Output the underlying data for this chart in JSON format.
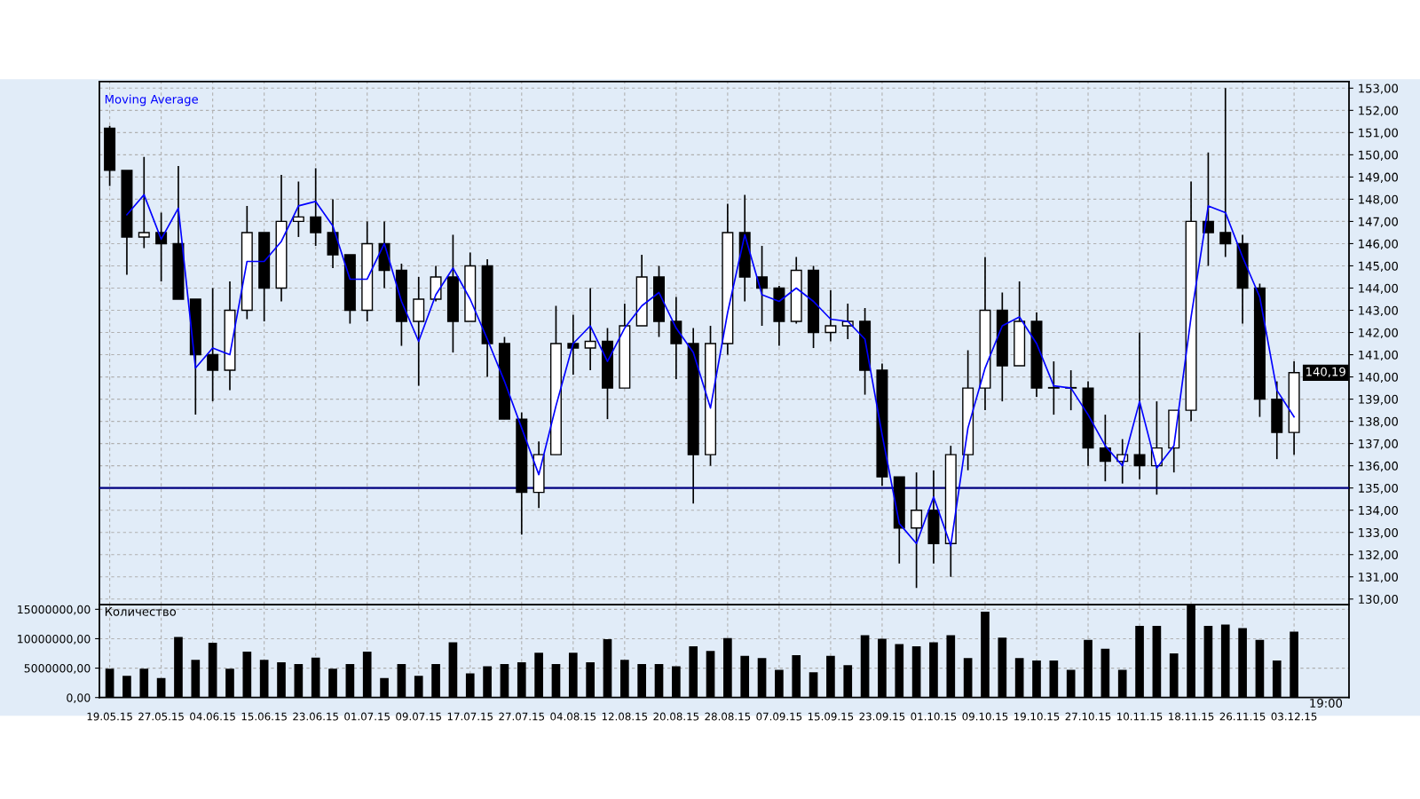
{
  "chart_data": [
    {
      "type": "candlestick",
      "color": "#000000",
      "categories": [
        "19.05.15",
        null,
        null,
        "27.05.15",
        null,
        null,
        "04.06.15",
        null,
        null,
        "15.06.15",
        null,
        null,
        "23.06.15",
        null,
        null,
        "01.07.15",
        null,
        null,
        "09.07.15",
        null,
        null,
        "17.07.15",
        null,
        null,
        "27.07.15",
        null,
        null,
        "04.08.15",
        null,
        null,
        "12.08.15",
        null,
        null,
        "20.08.15",
        null,
        null,
        "28.08.15",
        null,
        null,
        "07.09.15",
        null,
        null,
        "15.09.15",
        null,
        null,
        "23.09.15",
        null,
        null,
        "01.10.15",
        null,
        null,
        "09.10.15",
        null,
        null,
        "19.10.15",
        null,
        null,
        "27.10.15",
        null,
        null,
        "10.11.15",
        null,
        null,
        "18.11.15",
        null,
        null,
        "26.11.15",
        null,
        null,
        "03.12.15"
      ],
      "ohlc": [
        [
          151.2,
          151.3,
          148.6,
          149.3
        ],
        [
          149.3,
          149.3,
          144.6,
          146.3
        ],
        [
          146.3,
          149.9,
          145.8,
          146.5
        ],
        [
          146.5,
          147.4,
          144.3,
          146.0
        ],
        [
          146.0,
          149.5,
          143.5,
          143.5
        ],
        [
          143.5,
          143.5,
          138.3,
          141.0
        ],
        [
          141.0,
          144.0,
          138.9,
          140.3
        ],
        [
          140.3,
          144.3,
          139.4,
          143.0
        ],
        [
          143.0,
          147.7,
          142.6,
          146.5
        ],
        [
          146.5,
          146.5,
          142.5,
          144.0
        ],
        [
          144.0,
          149.1,
          143.4,
          147.0
        ],
        [
          147.0,
          148.8,
          146.3,
          147.2
        ],
        [
          147.2,
          149.4,
          145.9,
          146.5
        ],
        [
          146.5,
          148.0,
          144.9,
          145.5
        ],
        [
          145.5,
          145.5,
          142.4,
          143.0
        ],
        [
          143.0,
          147.0,
          142.5,
          146.0
        ],
        [
          146.0,
          147.0,
          144.0,
          144.8
        ],
        [
          144.8,
          145.1,
          141.4,
          142.5
        ],
        [
          142.5,
          144.5,
          139.6,
          143.5
        ],
        [
          143.5,
          145.0,
          143.4,
          144.5
        ],
        [
          144.5,
          146.4,
          141.1,
          142.5
        ],
        [
          142.5,
          145.6,
          142.5,
          145.0
        ],
        [
          145.0,
          145.3,
          140.0,
          141.5
        ],
        [
          141.5,
          141.8,
          138.1,
          138.1
        ],
        [
          138.1,
          138.4,
          132.9,
          134.8
        ],
        [
          134.8,
          137.1,
          134.1,
          136.5
        ],
        [
          136.5,
          143.2,
          136.5,
          141.5
        ],
        [
          141.5,
          142.8,
          140.1,
          141.3
        ],
        [
          141.3,
          144.0,
          140.3,
          141.6
        ],
        [
          141.6,
          142.2,
          138.1,
          139.5
        ],
        [
          139.5,
          143.3,
          139.5,
          142.3
        ],
        [
          142.3,
          145.5,
          142.3,
          144.5
        ],
        [
          144.5,
          145.0,
          141.8,
          142.5
        ],
        [
          142.5,
          143.6,
          139.9,
          141.5
        ],
        [
          141.5,
          142.2,
          134.3,
          136.5
        ],
        [
          136.5,
          142.3,
          136.0,
          141.5
        ],
        [
          141.5,
          147.8,
          141.0,
          146.5
        ],
        [
          146.5,
          148.2,
          143.4,
          144.5
        ],
        [
          144.5,
          145.9,
          142.3,
          144.0
        ],
        [
          144.0,
          144.1,
          141.4,
          142.5
        ],
        [
          142.5,
          145.4,
          142.4,
          144.8
        ],
        [
          144.8,
          145.0,
          141.3,
          142.0
        ],
        [
          142.0,
          143.9,
          141.6,
          142.3
        ],
        [
          142.3,
          143.3,
          141.7,
          142.5
        ],
        [
          142.5,
          143.1,
          139.2,
          140.3
        ],
        [
          140.3,
          140.6,
          135.1,
          135.5
        ],
        [
          135.5,
          135.5,
          131.6,
          133.2
        ],
        [
          133.2,
          135.7,
          130.5,
          134.0
        ],
        [
          134.0,
          135.8,
          131.6,
          132.5
        ],
        [
          132.5,
          136.9,
          131.0,
          136.5
        ],
        [
          136.5,
          141.2,
          135.8,
          139.5
        ],
        [
          139.5,
          145.4,
          138.5,
          143.0
        ],
        [
          143.0,
          143.8,
          138.9,
          140.5
        ],
        [
          140.5,
          144.3,
          140.5,
          142.5
        ],
        [
          142.5,
          142.9,
          139.1,
          139.5
        ],
        [
          139.5,
          140.7,
          138.3,
          139.5
        ],
        [
          139.5,
          140.3,
          138.5,
          139.5
        ],
        [
          139.5,
          139.8,
          136.0,
          136.8
        ],
        [
          136.8,
          138.3,
          135.3,
          136.2
        ],
        [
          136.2,
          137.2,
          135.2,
          136.5
        ],
        [
          136.5,
          142.0,
          135.4,
          136.0
        ],
        [
          136.0,
          138.9,
          134.7,
          136.8
        ],
        [
          136.8,
          138.5,
          135.7,
          138.5
        ],
        [
          138.5,
          148.8,
          138.0,
          147.0
        ],
        [
          147.0,
          150.1,
          145.0,
          146.5
        ],
        [
          146.5,
          153.0,
          145.4,
          146.0
        ],
        [
          146.0,
          146.4,
          142.4,
          144.0
        ],
        [
          144.0,
          144.2,
          138.2,
          139.0
        ],
        [
          139.0,
          139.8,
          136.3,
          137.5
        ],
        [
          137.5,
          140.7,
          136.5,
          140.19
        ]
      ],
      "series": [
        {
          "name": "Moving Average",
          "type": "line",
          "color": "#0000ff",
          "values": [
            null,
            147.3,
            148.2,
            146.2,
            147.6,
            140.4,
            141.3,
            141.0,
            145.2,
            145.2,
            146.1,
            147.7,
            147.9,
            146.8,
            144.4,
            144.4,
            146.0,
            143.4,
            141.6,
            143.7,
            144.9,
            143.5,
            141.7,
            139.8,
            137.7,
            135.6,
            138.7,
            141.5,
            142.3,
            140.7,
            142.2,
            143.2,
            143.8,
            142.2,
            141.1,
            138.6,
            142.9,
            146.4,
            143.7,
            143.4,
            144.0,
            143.4,
            142.6,
            142.5,
            141.7,
            137.4,
            133.4,
            132.5,
            134.6,
            132.4,
            137.7,
            140.4,
            142.3,
            142.7,
            141.5,
            139.6,
            139.5,
            138.3,
            136.9,
            136.0,
            138.9,
            135.9,
            136.9,
            142.7,
            147.7,
            147.4,
            145.4,
            143.6,
            139.4,
            138.2
          ]
        }
      ],
      "ylim": [
        129.75,
        153.3
      ],
      "yticks": [
        {
          "value": 130,
          "label": "130,00"
        },
        {
          "value": 131,
          "label": "131,00"
        },
        {
          "value": 132,
          "label": "132,00"
        },
        {
          "value": 133,
          "label": "133,00"
        },
        {
          "value": 134,
          "label": "134,00"
        },
        {
          "value": 135,
          "label": "135,00"
        },
        {
          "value": 136,
          "label": "136,00"
        },
        {
          "value": 137,
          "label": "137,00"
        },
        {
          "value": 138,
          "label": "138,00"
        },
        {
          "value": 139,
          "label": "139,00"
        },
        {
          "value": 140,
          "label": "140,00"
        },
        {
          "value": 141,
          "label": "141,00"
        },
        {
          "value": 142,
          "label": "142,00"
        },
        {
          "value": 143,
          "label": "143,00"
        },
        {
          "value": 144,
          "label": "144,00"
        },
        {
          "value": 145,
          "label": "145,00"
        },
        {
          "value": 146,
          "label": "146,00"
        },
        {
          "value": 147,
          "label": "147,00"
        },
        {
          "value": 148,
          "label": "148,00"
        },
        {
          "value": 149,
          "label": "149,00"
        },
        {
          "value": 150,
          "label": "150,00"
        },
        {
          "value": 151,
          "label": "151,00"
        },
        {
          "value": 152,
          "label": "152,00"
        },
        {
          "value": 153,
          "label": "153,00"
        }
      ],
      "ref_lines": [
        {
          "axis": "y",
          "value": 135,
          "color": "#000080"
        }
      ],
      "annotations": [
        {
          "text": "140,19",
          "x": "03.12.15",
          "y": 140.19
        }
      ],
      "grid": true,
      "legend": "top left",
      "tick_labels": "y"
    },
    {
      "type": "bar",
      "title": "Количество",
      "color": "#000000",
      "categories": [
        "19.05.15",
        null,
        null,
        "27.05.15",
        null,
        null,
        "04.06.15",
        null,
        null,
        "15.06.15",
        null,
        null,
        "23.06.15",
        null,
        null,
        "01.07.15",
        null,
        null,
        "09.07.15",
        null,
        null,
        "17.07.15",
        null,
        null,
        "27.07.15",
        null,
        null,
        "04.08.15",
        null,
        null,
        "12.08.15",
        null,
        null,
        "20.08.15",
        null,
        null,
        "28.08.15",
        null,
        null,
        "07.09.15",
        null,
        null,
        "15.09.15",
        null,
        null,
        "23.09.15",
        null,
        null,
        "01.10.15",
        null,
        null,
        "09.10.15",
        null,
        null,
        "19.10.15",
        null,
        null,
        "27.10.15",
        null,
        null,
        "10.11.15",
        null,
        null,
        "18.11.15",
        null,
        null,
        "26.11.15",
        null,
        null,
        "03.12.15"
      ],
      "values": [
        4900000,
        3700000,
        4900000,
        3300000,
        10300000,
        6400000,
        9300000,
        4900000,
        7800000,
        6400000,
        6000000,
        5700000,
        6800000,
        4900000,
        5700000,
        7800000,
        3300000,
        5700000,
        3700000,
        5700000,
        9400000,
        4100000,
        5300000,
        5700000,
        6000000,
        7600000,
        5700000,
        7600000,
        6000000,
        9900000,
        6400000,
        5700000,
        5700000,
        5300000,
        8700000,
        7900000,
        10100000,
        7100000,
        6700000,
        4700000,
        7200000,
        4300000,
        7100000,
        5500000,
        10600000,
        10000000,
        9100000,
        8700000,
        9400000,
        10600000,
        6700000,
        14600000,
        10200000,
        6700000,
        6300000,
        6300000,
        4700000,
        9800000,
        8300000,
        4700000,
        12200000,
        12200000,
        7500000,
        15700000,
        12200000,
        12400000,
        11800000,
        9800000,
        6300000,
        11200000
      ],
      "ylim": [
        0,
        15800000
      ],
      "yticks": [
        {
          "value": 0,
          "label": "0,00"
        },
        {
          "value": 5000000,
          "label": "5000000,00"
        },
        {
          "value": 10000000,
          "label": "10000000,00"
        },
        {
          "value": 15000000,
          "label": "15000000,00"
        }
      ],
      "annotations": [
        "19:00"
      ],
      "grid": true
    }
  ]
}
